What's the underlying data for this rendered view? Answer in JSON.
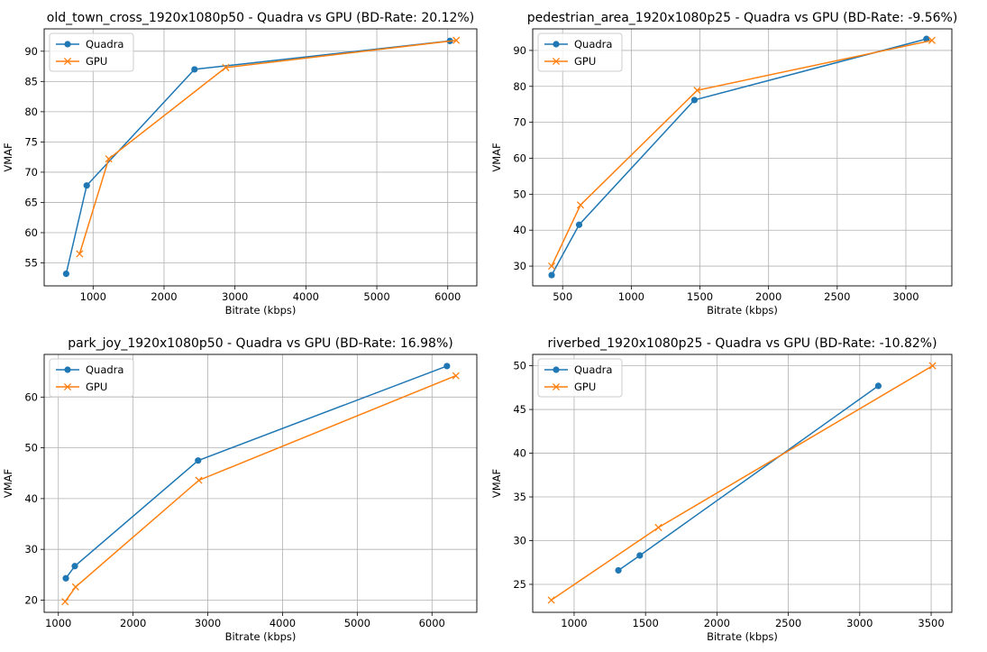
{
  "chart_data": [
    {
      "type": "line",
      "title": "old_town_cross_1920x1080p50 - Quadra vs GPU (BD-Rate: 20.12%)",
      "xlabel": "Bitrate (kbps)",
      "ylabel": "VMAF",
      "xlim": [
        310,
        6410
      ],
      "ylim": [
        51.2,
        93.7
      ],
      "xticks": [
        1000,
        2000,
        3000,
        4000,
        5000,
        6000
      ],
      "xtick_labels": [
        "1000",
        "2000",
        "3000",
        "4000",
        "5000",
        "6000"
      ],
      "yticks": [
        55,
        60,
        65,
        70,
        75,
        80,
        85,
        90
      ],
      "ytick_labels": [
        "55",
        "60",
        "65",
        "70",
        "75",
        "80",
        "85",
        "90"
      ],
      "grid": true,
      "legend": "upper-left",
      "series": [
        {
          "name": "Quadra",
          "color": "#1f77b4",
          "marker": "circle",
          "x": [
            620,
            910,
            2430,
            6030
          ],
          "y": [
            53.2,
            67.8,
            87.0,
            91.7
          ]
        },
        {
          "name": "GPU",
          "color": "#ff7f0e",
          "marker": "x",
          "x": [
            810,
            1220,
            2870,
            6120
          ],
          "y": [
            56.5,
            72.2,
            87.3,
            91.8
          ]
        }
      ]
    },
    {
      "type": "line",
      "title": "pedestrian_area_1920x1080p25 - Quadra vs GPU (BD-Rate: -9.56%)",
      "xlabel": "Bitrate (kbps)",
      "ylabel": "VMAF",
      "xlim": [
        282,
        3335
      ],
      "ylim": [
        24.5,
        96.0
      ],
      "xticks": [
        500,
        1000,
        1500,
        2000,
        2500,
        3000
      ],
      "xtick_labels": [
        "500",
        "1000",
        "1500",
        "2000",
        "2500",
        "3000"
      ],
      "yticks": [
        30,
        40,
        50,
        60,
        70,
        80,
        90
      ],
      "ytick_labels": [
        "30",
        "40",
        "50",
        "60",
        "70",
        "80",
        "90"
      ],
      "grid": true,
      "legend": "upper-left",
      "series": [
        {
          "name": "Quadra",
          "color": "#1f77b4",
          "marker": "circle",
          "x": [
            420,
            620,
            1460,
            3150
          ],
          "y": [
            27.5,
            41.5,
            76.2,
            93.2
          ]
        },
        {
          "name": "GPU",
          "color": "#ff7f0e",
          "marker": "x",
          "x": [
            420,
            630,
            1480,
            3190
          ],
          "y": [
            30.0,
            47.0,
            78.9,
            92.8
          ]
        }
      ]
    },
    {
      "type": "line",
      "title": "park_joy_1920x1080p50 - Quadra vs GPU (BD-Rate: 16.98%)",
      "xlabel": "Bitrate (kbps)",
      "ylabel": "VMAF",
      "xlim": [
        810,
        6600
      ],
      "ylim": [
        17.6,
        68.4
      ],
      "xticks": [
        1000,
        2000,
        3000,
        4000,
        5000,
        6000
      ],
      "xtick_labels": [
        "1000",
        "2000",
        "3000",
        "4000",
        "5000",
        "6000"
      ],
      "yticks": [
        20,
        30,
        40,
        50,
        60
      ],
      "ytick_labels": [
        "20",
        "30",
        "40",
        "50",
        "60"
      ],
      "grid": true,
      "legend": "upper-left",
      "series": [
        {
          "name": "Quadra",
          "color": "#1f77b4",
          "marker": "circle",
          "x": [
            1100,
            1220,
            2870,
            6200
          ],
          "y": [
            24.3,
            26.7,
            47.5,
            66.1
          ]
        },
        {
          "name": "GPU",
          "color": "#ff7f0e",
          "marker": "x",
          "x": [
            1090,
            1230,
            2880,
            6320
          ],
          "y": [
            19.7,
            22.6,
            43.6,
            64.2
          ]
        }
      ]
    },
    {
      "type": "line",
      "title": "riverbed_1920x1080p25 - Quadra vs GPU (BD-Rate: -10.82%)",
      "xlabel": "Bitrate (kbps)",
      "ylabel": "VMAF",
      "xlim": [
        710,
        3645
      ],
      "ylim": [
        21.8,
        51.3
      ],
      "xticks": [
        1000,
        1500,
        2000,
        2500,
        3000,
        3500
      ],
      "xtick_labels": [
        "1000",
        "1500",
        "2000",
        "2500",
        "3000",
        "3500"
      ],
      "yticks": [
        25,
        30,
        35,
        40,
        45,
        50
      ],
      "ytick_labels": [
        "25",
        "30",
        "35",
        "40",
        "45",
        "50"
      ],
      "grid": true,
      "legend": "upper-left",
      "series": [
        {
          "name": "Quadra",
          "color": "#1f77b4",
          "marker": "circle",
          "x": [
            1310,
            1460,
            3130
          ],
          "y": [
            26.6,
            28.3,
            47.7
          ]
        },
        {
          "name": "GPU",
          "color": "#ff7f0e",
          "marker": "x",
          "x": [
            840,
            1590,
            3510
          ],
          "y": [
            23.2,
            31.5,
            50.0
          ]
        }
      ]
    }
  ]
}
